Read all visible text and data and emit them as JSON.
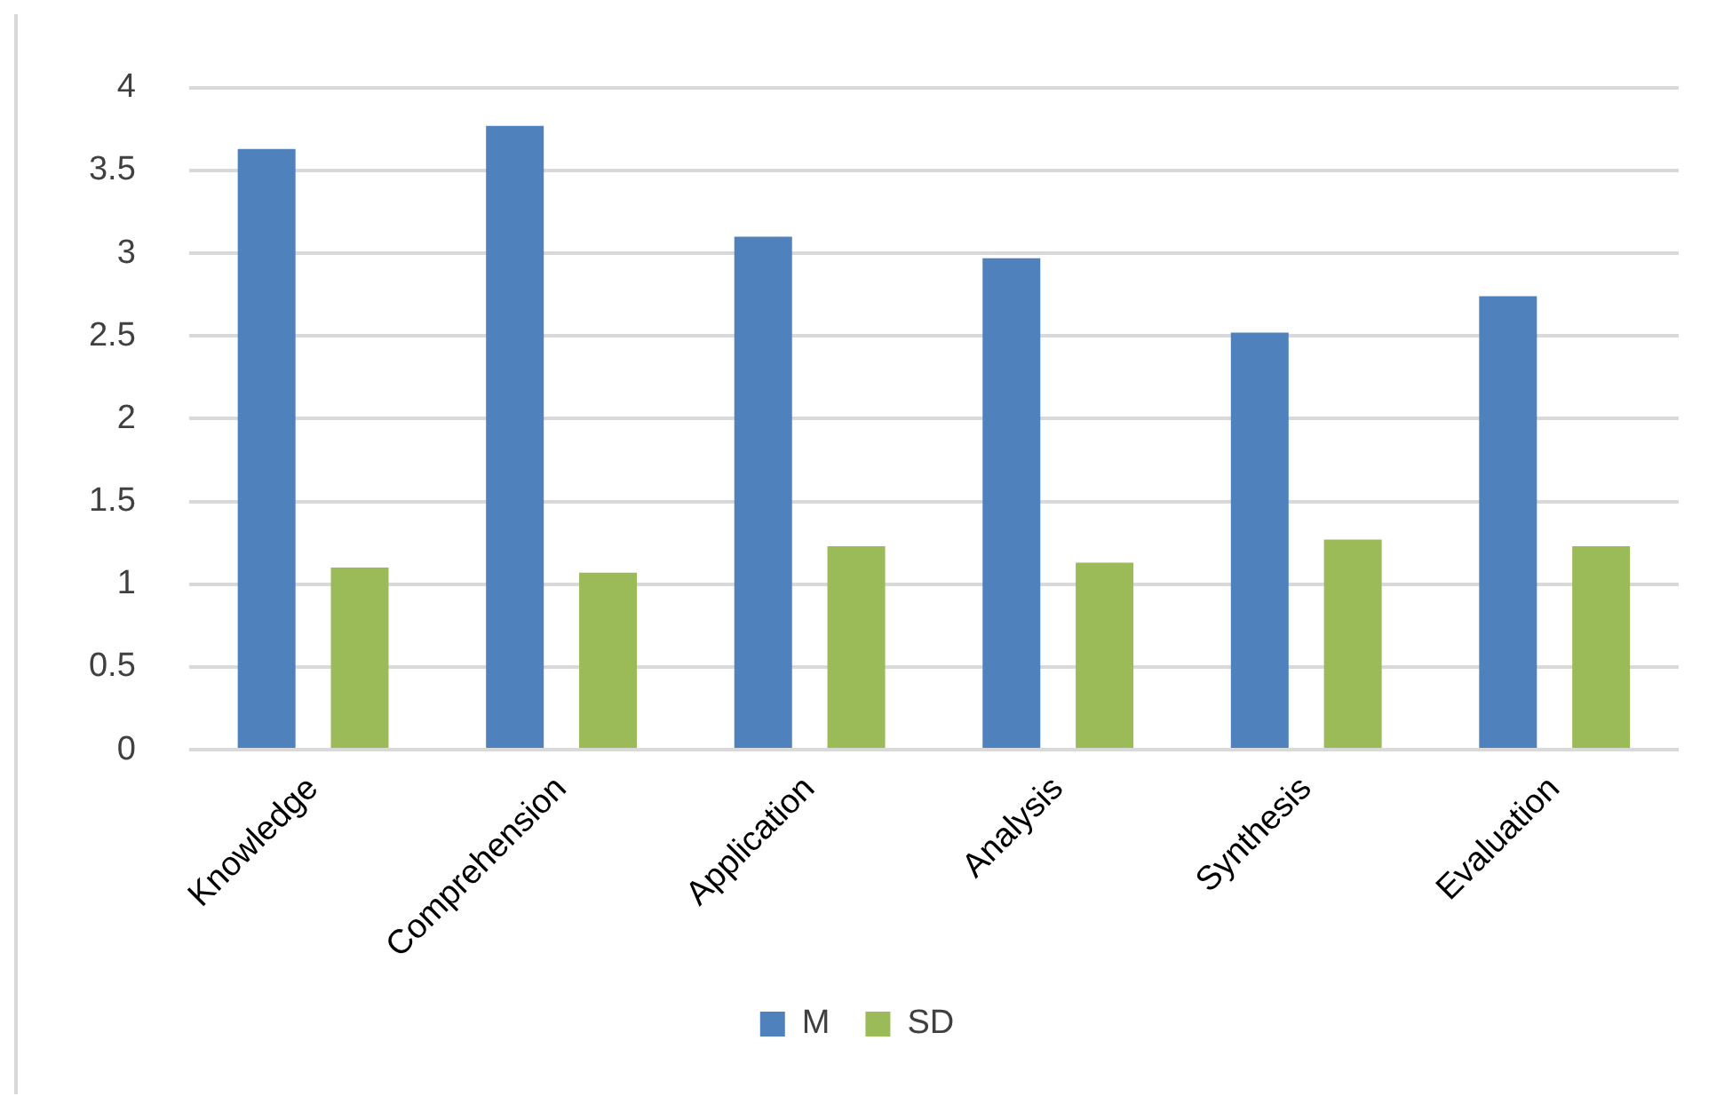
{
  "chart_data": {
    "type": "bar",
    "categories": [
      "Knowledge",
      "Comprehension",
      "Application",
      "Analysis",
      "Synthesis",
      "Evaluation"
    ],
    "series": [
      {
        "name": "M",
        "color": "#4f81bd",
        "values": [
          3.63,
          3.77,
          3.1,
          2.97,
          2.52,
          2.74
        ]
      },
      {
        "name": "SD",
        "color": "#9bbb59",
        "values": [
          1.1,
          1.07,
          1.23,
          1.13,
          1.27,
          1.23
        ]
      }
    ],
    "ylim": [
      0,
      4
    ],
    "yticks": [
      0,
      0.5,
      1,
      1.5,
      2,
      2.5,
      3,
      3.5,
      4
    ],
    "grid": "y",
    "legend": "bottom"
  }
}
